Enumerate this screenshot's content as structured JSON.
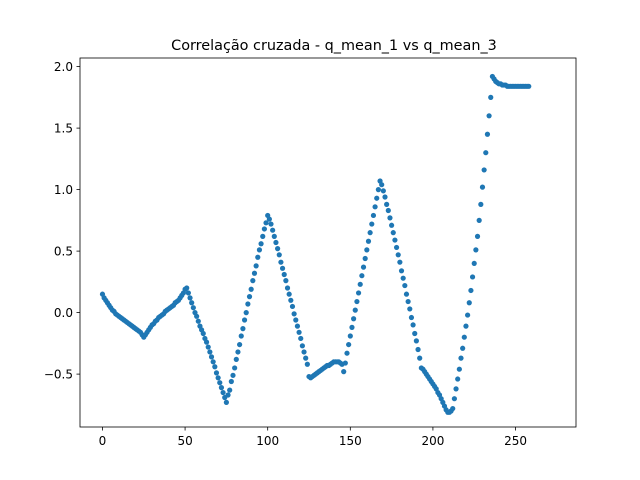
{
  "chart_data": {
    "type": "scatter",
    "title": "Correlação cruzada - q_mean_1 vs q_mean_3",
    "xlabel": "",
    "ylabel": "",
    "xlim": [
      -13.6,
      286.6
    ],
    "ylim": [
      -0.93,
      2.07
    ],
    "x_ticks": [
      0,
      50,
      100,
      150,
      200,
      250
    ],
    "x_tick_labels": [
      "0",
      "50",
      "100",
      "150",
      "200",
      "250"
    ],
    "y_ticks": [
      -0.5,
      0.0,
      0.5,
      1.0,
      1.5,
      2.0
    ],
    "y_tick_labels": [
      "−0.5",
      "0.0",
      "0.5",
      "1.0",
      "1.5",
      "2.0"
    ],
    "grid": false,
    "legend": "none",
    "marker_color": "#1f77b4",
    "series": [
      {
        "x_start": 0,
        "x_step": 1,
        "values": [
          0.15,
          0.12,
          0.1,
          0.08,
          0.06,
          0.04,
          0.02,
          0.01,
          -0.01,
          -0.02,
          -0.03,
          -0.04,
          -0.05,
          -0.06,
          -0.07,
          -0.08,
          -0.09,
          -0.1,
          -0.11,
          -0.12,
          -0.13,
          -0.14,
          -0.15,
          -0.16,
          -0.18,
          -0.2,
          -0.18,
          -0.16,
          -0.14,
          -0.12,
          -0.1,
          -0.09,
          -0.07,
          -0.06,
          -0.04,
          -0.03,
          -0.02,
          -0.01,
          0.01,
          0.02,
          0.03,
          0.04,
          0.05,
          0.06,
          0.08,
          0.09,
          0.1,
          0.12,
          0.14,
          0.16,
          0.19,
          0.2,
          0.16,
          0.12,
          0.08,
          0.04,
          0.0,
          -0.03,
          -0.07,
          -0.11,
          -0.14,
          -0.17,
          -0.21,
          -0.24,
          -0.28,
          -0.32,
          -0.36,
          -0.4,
          -0.44,
          -0.49,
          -0.53,
          -0.57,
          -0.61,
          -0.65,
          -0.69,
          -0.73,
          -0.67,
          -0.63,
          -0.56,
          -0.51,
          -0.45,
          -0.38,
          -0.32,
          -0.26,
          -0.19,
          -0.13,
          -0.06,
          0.0,
          0.07,
          0.13,
          0.19,
          0.26,
          0.32,
          0.38,
          0.45,
          0.51,
          0.56,
          0.62,
          0.68,
          0.73,
          0.79,
          0.76,
          0.72,
          0.67,
          0.62,
          0.57,
          0.52,
          0.47,
          0.41,
          0.36,
          0.31,
          0.26,
          0.2,
          0.15,
          0.1,
          0.05,
          -0.01,
          -0.06,
          -0.11,
          -0.16,
          -0.21,
          -0.27,
          -0.32,
          -0.37,
          -0.42,
          -0.52,
          -0.53,
          -0.52,
          -0.51,
          -0.5,
          -0.49,
          -0.48,
          -0.47,
          -0.46,
          -0.45,
          -0.44,
          -0.43,
          -0.43,
          -0.42,
          -0.41,
          -0.4,
          -0.4,
          -0.4,
          -0.4,
          -0.41,
          -0.42,
          -0.48,
          -0.41,
          -0.33,
          -0.26,
          -0.19,
          -0.12,
          -0.05,
          0.02,
          0.09,
          0.16,
          0.23,
          0.3,
          0.37,
          0.44,
          0.51,
          0.58,
          0.65,
          0.72,
          0.79,
          0.86,
          0.93,
          1.0,
          1.07,
          1.04,
          0.99,
          0.94,
          0.88,
          0.83,
          0.77,
          0.71,
          0.65,
          0.59,
          0.53,
          0.47,
          0.41,
          0.34,
          0.28,
          0.22,
          0.15,
          0.09,
          0.03,
          -0.04,
          -0.1,
          -0.17,
          -0.23,
          -0.3,
          -0.37,
          -0.45,
          -0.46,
          -0.48,
          -0.5,
          -0.52,
          -0.54,
          -0.56,
          -0.58,
          -0.6,
          -0.62,
          -0.65,
          -0.67,
          -0.7,
          -0.73,
          -0.76,
          -0.79,
          -0.81,
          -0.81,
          -0.8,
          -0.78,
          -0.7,
          -0.62,
          -0.54,
          -0.46,
          -0.37,
          -0.29,
          -0.2,
          -0.11,
          -0.02,
          0.08,
          0.18,
          0.29,
          0.4,
          0.51,
          0.62,
          0.75,
          0.88,
          1.02,
          1.16,
          1.3,
          1.45,
          1.6,
          1.75,
          1.92,
          1.9,
          1.88,
          1.87,
          1.86,
          1.86,
          1.85,
          1.85,
          1.85,
          1.84,
          1.84,
          1.84,
          1.84,
          1.84,
          1.84,
          1.84,
          1.84,
          1.84,
          1.84,
          1.84,
          1.84,
          1.84,
          1.84
        ]
      }
    ]
  }
}
